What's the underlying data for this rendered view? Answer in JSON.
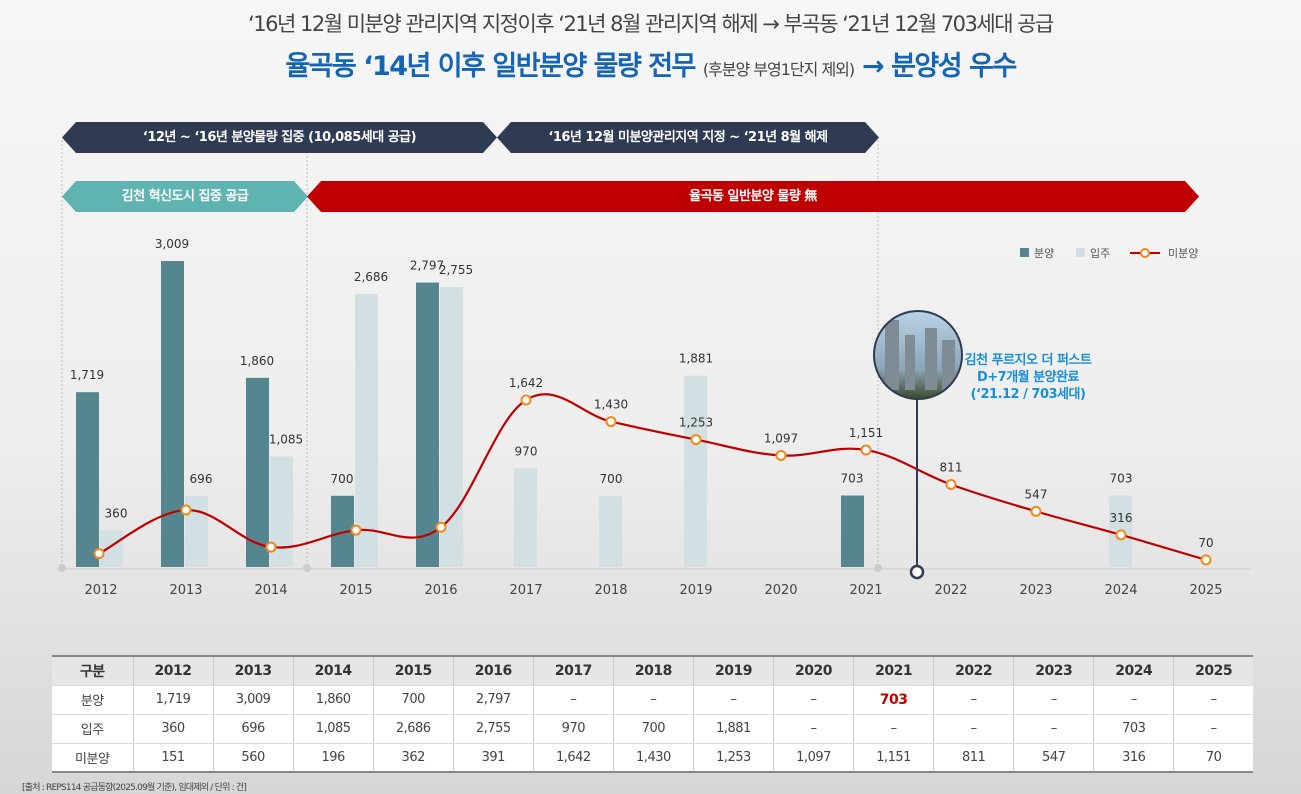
{
  "header": {
    "line1": "‘16년 12월 미분양 관리지역 지정이후 ‘21년 8월 관리지역 해제 → 부곡동 ‘21년 12월 703세대 공급",
    "line2_main": "율곡동 ‘14년 이후 일반분양 물량 전무 ",
    "line2_note": "(후분양 부영1단지 제외)",
    "line2_tail": " → 분양성 우수"
  },
  "banners": {
    "period1": "‘12년 ~ ‘16년 분양물량 집중 (10,085세대 공급)",
    "period2": "‘16년 12월 미분양관리지역 지정 ~ ‘21년 8월 해제",
    "teal": "김천 혁신도시 집중 공급",
    "red": "율곡동 일반분양 물량 無"
  },
  "callout": {
    "line1": "김천 푸르지오 더 퍼스트",
    "line2": "D+7개월 분양완료",
    "line3": "(‘21.12 / 703세대)"
  },
  "colors": {
    "bunyang": "#55868f",
    "ipju": "#d2dfe3",
    "mibunyang": "#c00000",
    "marker": "#f08a1c",
    "navy": "#2e3b52",
    "teal": "#5fb3b0",
    "red": "#c00000"
  },
  "chart_data": {
    "type": "bar+line",
    "categories": [
      "2012",
      "2013",
      "2014",
      "2015",
      "2016",
      "2017",
      "2018",
      "2019",
      "2020",
      "2021",
      "2022",
      "2023",
      "2024",
      "2025"
    ],
    "series": [
      {
        "name": "분양",
        "type": "bar",
        "values": [
          1719,
          3009,
          1860,
          700,
          2797,
          null,
          null,
          null,
          null,
          703,
          null,
          null,
          null,
          null
        ]
      },
      {
        "name": "입주",
        "type": "bar",
        "values": [
          360,
          696,
          1085,
          2686,
          2755,
          970,
          700,
          1881,
          null,
          null,
          null,
          null,
          703,
          null
        ]
      },
      {
        "name": "미분양",
        "type": "line",
        "values": [
          151,
          560,
          196,
          362,
          391,
          1642,
          1430,
          1253,
          1097,
          1151,
          811,
          547,
          316,
          70
        ]
      }
    ],
    "ylim": [
      0,
      3100
    ],
    "legend": "top-right",
    "grid": false
  },
  "table": {
    "header": [
      "구분",
      "2012",
      "2013",
      "2014",
      "2015",
      "2016",
      "2017",
      "2018",
      "2019",
      "2020",
      "2021",
      "2022",
      "2023",
      "2024",
      "2025"
    ],
    "rows": [
      [
        "분양",
        "1,719",
        "3,009",
        "1,860",
        "700",
        "2,797",
        "–",
        "–",
        "–",
        "–",
        "703",
        "–",
        "–",
        "–",
        "–"
      ],
      [
        "입주",
        "360",
        "696",
        "1,085",
        "2,686",
        "2,755",
        "970",
        "700",
        "1,881",
        "–",
        "–",
        "–",
        "–",
        "703",
        "–"
      ],
      [
        "미분양",
        "151",
        "560",
        "196",
        "362",
        "391",
        "1,642",
        "1,430",
        "1,253",
        "1,097",
        "1,151",
        "811",
        "547",
        "316",
        "70"
      ]
    ]
  },
  "source": "[출처 : REPS114 공급동향(2025.09월 기준), 임대제외 / 단위 : 건]"
}
